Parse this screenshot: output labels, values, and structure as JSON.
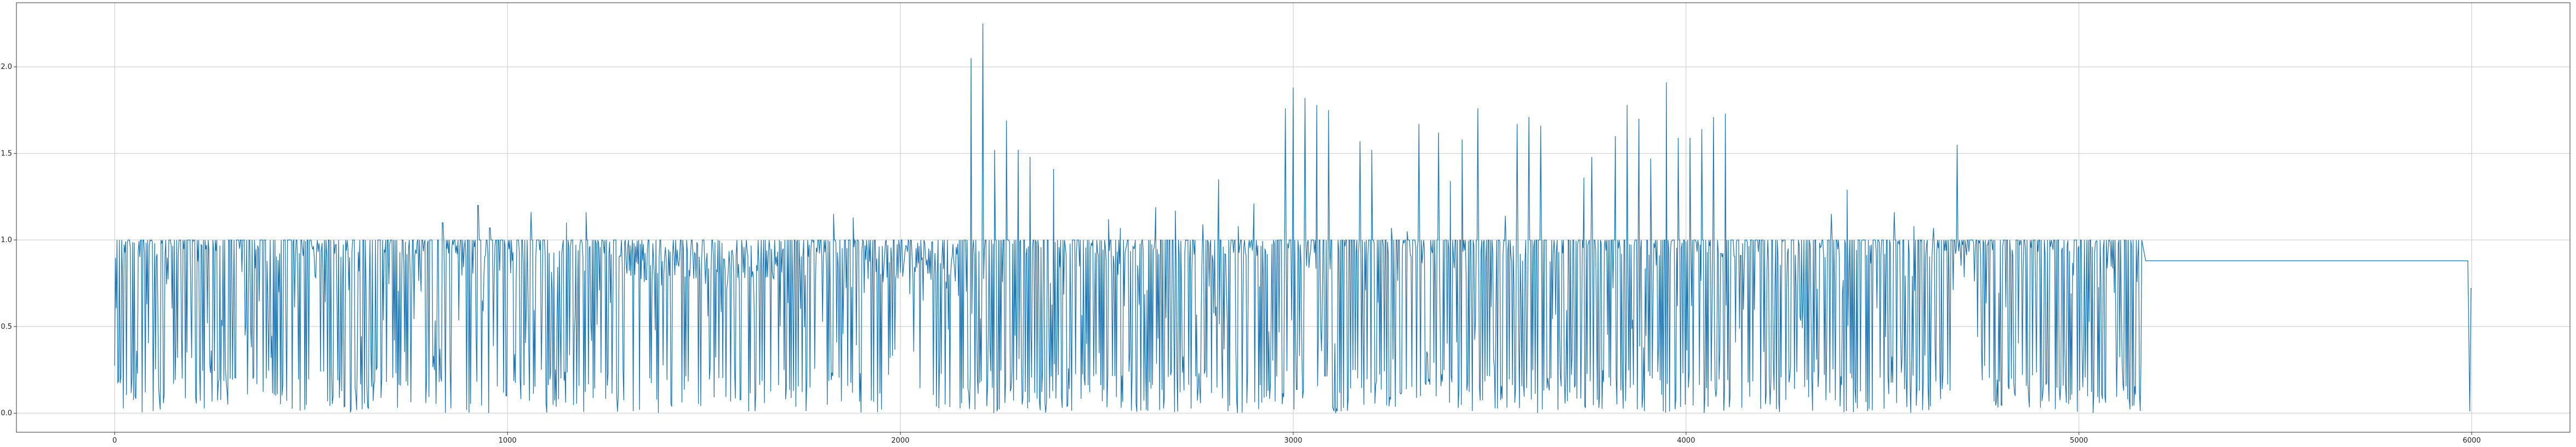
{
  "chart_data": {
    "type": "line",
    "title": "",
    "xlabel": "",
    "ylabel": "",
    "xlim": [
      -250,
      6250
    ],
    "ylim": [
      -0.11,
      2.37
    ],
    "grid": true,
    "legend": "none",
    "x_ticks": [
      0,
      1000,
      2000,
      3000,
      4000,
      5000,
      6000
    ],
    "x_tick_labels": [
      "0",
      "1000",
      "2000",
      "3000",
      "4000",
      "5000",
      "6000"
    ],
    "y_ticks": [
      0.0,
      0.5,
      1.0,
      1.5,
      2.0
    ],
    "y_tick_labels": [
      "0.0",
      "0.5",
      "1.0",
      "1.5",
      "2.0"
    ],
    "series": [
      {
        "color": "#1f77b4",
        "x_range": [
          0,
          6000
        ],
        "dense_range": [
          0,
          5160
        ],
        "typical_range": [
          0.0,
          1.0
        ],
        "peaks": [
          [
            835,
            1.1
          ],
          [
            925,
            1.2
          ],
          [
            955,
            1.07
          ],
          [
            1060,
            1.16
          ],
          [
            1150,
            1.1
          ],
          [
            1200,
            1.16
          ],
          [
            1830,
            1.15
          ],
          [
            1880,
            1.13
          ],
          [
            2180,
            2.05
          ],
          [
            2210,
            2.25
          ],
          [
            2240,
            1.52
          ],
          [
            2270,
            1.69
          ],
          [
            2300,
            1.52
          ],
          [
            2330,
            1.48
          ],
          [
            2390,
            1.41
          ],
          [
            2530,
            1.12
          ],
          [
            2560,
            1.07
          ],
          [
            2650,
            1.19
          ],
          [
            2700,
            1.17
          ],
          [
            2770,
            1.09
          ],
          [
            2810,
            1.35
          ],
          [
            2860,
            1.08
          ],
          [
            2900,
            1.21
          ],
          [
            2980,
            1.76
          ],
          [
            3000,
            1.88
          ],
          [
            3030,
            1.82
          ],
          [
            3060,
            1.78
          ],
          [
            3090,
            1.75
          ],
          [
            3170,
            1.57
          ],
          [
            3200,
            1.52
          ],
          [
            3250,
            1.07
          ],
          [
            3290,
            1.05
          ],
          [
            3320,
            1.67
          ],
          [
            3370,
            1.62
          ],
          [
            3400,
            1.34
          ],
          [
            3430,
            1.58
          ],
          [
            3470,
            1.76
          ],
          [
            3540,
            1.14
          ],
          [
            3570,
            1.67
          ],
          [
            3600,
            1.71
          ],
          [
            3630,
            1.66
          ],
          [
            3740,
            1.36
          ],
          [
            3760,
            1.48
          ],
          [
            3820,
            1.6
          ],
          [
            3850,
            1.78
          ],
          [
            3880,
            1.7
          ],
          [
            3910,
            1.47
          ],
          [
            3950,
            1.91
          ],
          [
            3980,
            1.59
          ],
          [
            4010,
            1.59
          ],
          [
            4040,
            1.64
          ],
          [
            4070,
            1.71
          ],
          [
            4100,
            1.73
          ],
          [
            4370,
            1.15
          ],
          [
            4410,
            1.29
          ],
          [
            4530,
            1.16
          ],
          [
            4580,
            1.08
          ],
          [
            4630,
            1.07
          ],
          [
            4690,
            1.55
          ],
          [
            4770,
            1.0
          ],
          [
            4900,
            1.0
          ]
        ],
        "plateau": {
          "x_start": 5170,
          "x_end": 5990,
          "y": 0.88
        },
        "end_points": [
          [
            5990,
            0.88
          ],
          [
            5995,
            0.01
          ],
          [
            5998,
            0.72
          ],
          [
            6000,
            0.72
          ]
        ]
      }
    ]
  }
}
